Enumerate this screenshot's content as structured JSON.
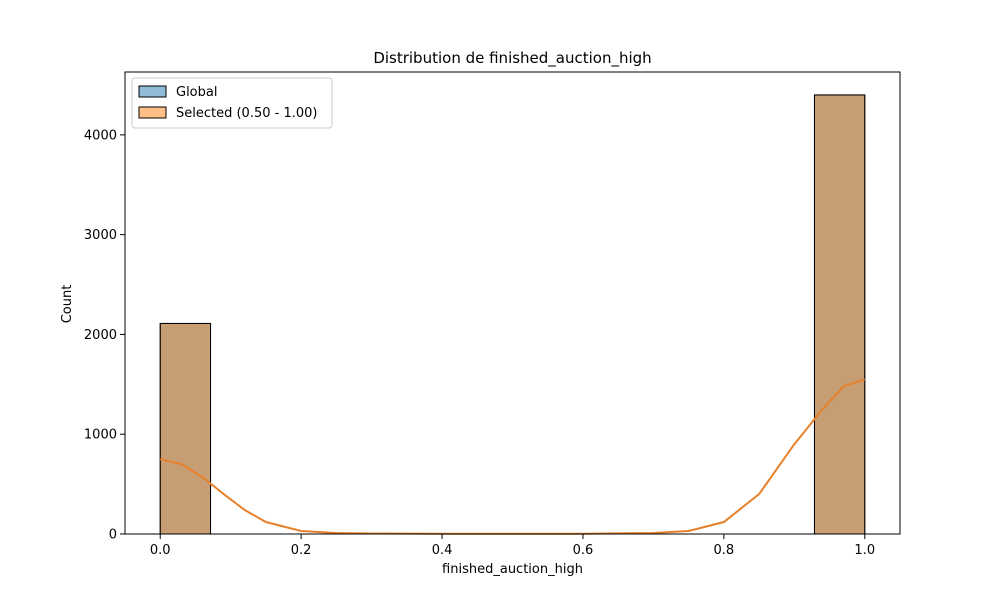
{
  "chart_data": {
    "type": "bar",
    "title": "Distribution de finished_auction_high",
    "xlabel": "finished_auction_high",
    "ylabel": "Count",
    "xlim": [
      -0.05,
      1.05
    ],
    "ylim": [
      0,
      4630
    ],
    "x_ticks": [
      0.0,
      0.2,
      0.4,
      0.6,
      0.8,
      1.0
    ],
    "x_tick_labels": [
      "0.0",
      "0.2",
      "0.4",
      "0.6",
      "0.8",
      "1.0"
    ],
    "y_ticks": [
      0,
      1000,
      2000,
      3000,
      4000
    ],
    "y_tick_labels": [
      "0",
      "1000",
      "2000",
      "3000",
      "4000"
    ],
    "grid": false,
    "legend_position": "top-left",
    "bin_edges": [
      0.0,
      0.0714,
      0.9286,
      1.0
    ],
    "series": [
      {
        "name": "Global",
        "color": "#1f77b4",
        "bins": [
          {
            "x0": 0.0,
            "x1": 0.0714,
            "count": 2110
          },
          {
            "x0": 0.9286,
            "x1": 1.0,
            "count": 4400
          }
        ]
      },
      {
        "name": "Selected (0.50 - 1.00)",
        "color": "#ff7f0e",
        "bins": [
          {
            "x0": 0.0,
            "x1": 0.0714,
            "count": 2110
          },
          {
            "x0": 0.9286,
            "x1": 1.0,
            "count": 4400
          }
        ]
      }
    ],
    "kde": {
      "color": "#e8812b",
      "x": [
        0.0,
        0.03,
        0.06,
        0.09,
        0.12,
        0.15,
        0.2,
        0.25,
        0.3,
        0.4,
        0.5,
        0.6,
        0.7,
        0.75,
        0.8,
        0.85,
        0.9,
        0.94,
        0.97,
        1.0
      ],
      "y": [
        750,
        700,
        570,
        400,
        240,
        120,
        30,
        10,
        5,
        3,
        3,
        3,
        10,
        30,
        120,
        400,
        900,
        1250,
        1480,
        1550
      ]
    }
  }
}
